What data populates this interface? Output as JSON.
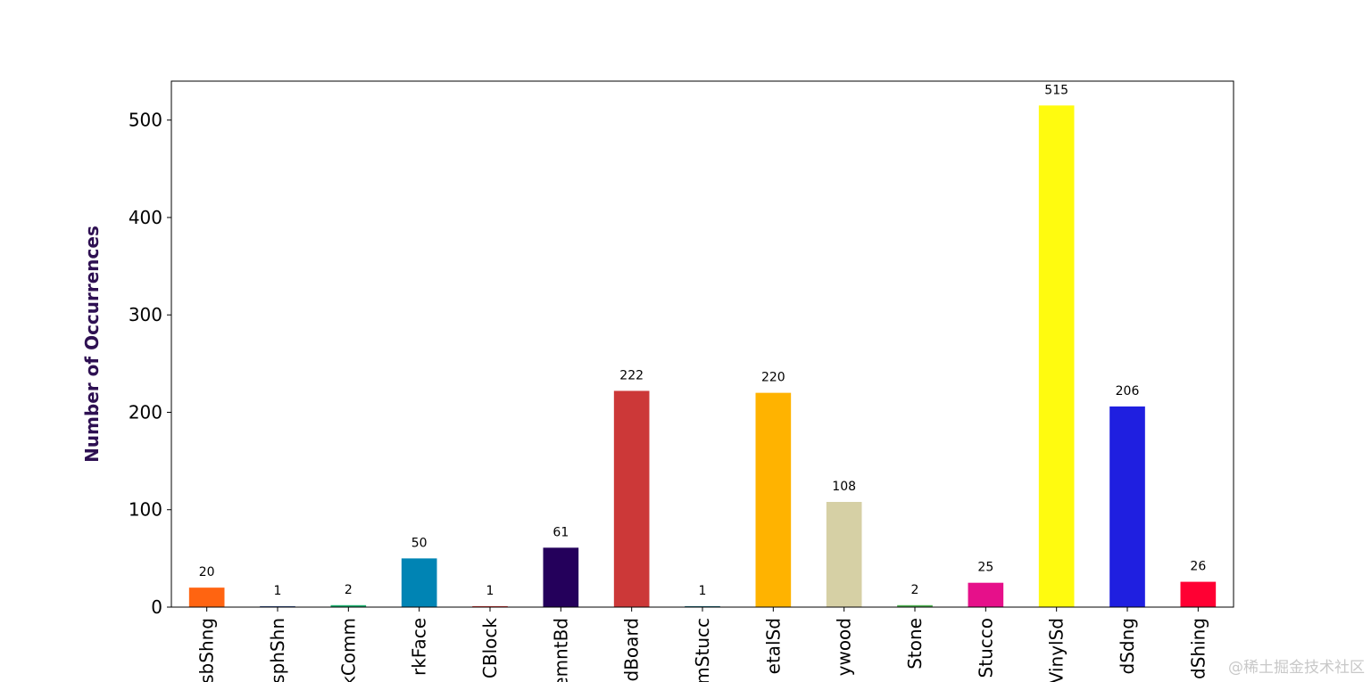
{
  "chart_data": {
    "type": "bar",
    "title": "",
    "xlabel": "",
    "ylabel": "Number of Occurrences",
    "ylabel_color": "#2e1052",
    "ylim": [
      0,
      540
    ],
    "yticks": [
      0,
      100,
      200,
      300,
      400,
      500
    ],
    "grid": false,
    "categories": [
      "AsbShng",
      "AsphShn",
      "BrkComm",
      "BrkFace",
      "CBlock",
      "CemntBd",
      "HdBoard",
      "ImStucc",
      "MetalSd",
      "Plywood",
      "Stone",
      "Stucco",
      "VinylSd",
      "Wd Sdng",
      "WdShing"
    ],
    "category_labels_visible": [
      "sbShng",
      "sphShn",
      "kComm",
      "rkFace",
      "CBlock",
      "emntBd",
      "dBoard",
      "mStucc",
      "etalSd",
      "ywood",
      "Stone",
      "Stucco",
      "VinylSd",
      "dSdng",
      "dShing"
    ],
    "values": [
      20,
      1,
      2,
      50,
      1,
      61,
      222,
      1,
      220,
      108,
      2,
      25,
      515,
      206,
      26
    ],
    "colors": [
      "#ff6411",
      "#3b5998",
      "#1bae6e",
      "#0084b4",
      "#e53935",
      "#24005b",
      "#cc3838",
      "#1a6e82",
      "#ffb300",
      "#d6d0a5",
      "#4caf50",
      "#e6108a",
      "#fffb0f",
      "#1f1fe0",
      "#ff0033"
    ]
  },
  "watermark": "@稀土掘金技术社区"
}
